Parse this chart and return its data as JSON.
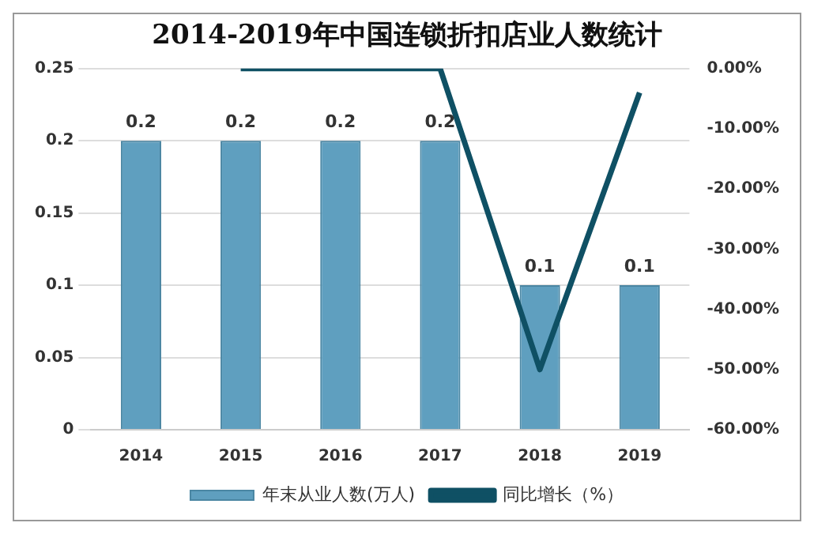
{
  "chart_data": {
    "type": "bar",
    "title": "2014-2019年中国连锁折扣店业人数统计",
    "categories": [
      "2014",
      "2015",
      "2016",
      "2017",
      "2018",
      "2019"
    ],
    "series": [
      {
        "name": "年末从业人数(万人)",
        "color": "#5f9fbf",
        "values": [
          0.2,
          0.2,
          0.2,
          0.2,
          0.1,
          0.1
        ],
        "value_labels": [
          "0.2",
          "0.2",
          "0.2",
          "0.2",
          "0.1",
          "0.1"
        ]
      },
      {
        "name": "同比增长（%）",
        "type": "line",
        "axis": "y2",
        "color": "#0f5064",
        "values": [
          null,
          0,
          0,
          0,
          -50,
          -4
        ]
      }
    ],
    "ylim": [
      0,
      0.25
    ],
    "yticks": [
      0,
      0.05,
      0.1,
      0.15,
      0.2,
      0.25
    ],
    "y2lim": [
      -60,
      0
    ],
    "y2ticks": [
      {
        "value": -60,
        "label": "-60.00%"
      },
      {
        "value": -50,
        "label": "-50.00%"
      },
      {
        "value": -40,
        "label": "-40.00%"
      },
      {
        "value": -30,
        "label": "-30.00%"
      },
      {
        "value": -20,
        "label": "-20.00%"
      },
      {
        "value": -10,
        "label": "-10.00%"
      },
      {
        "value": 0,
        "label": "0.00%"
      }
    ],
    "grid": "y",
    "legend": "bottom",
    "marker": "none"
  }
}
